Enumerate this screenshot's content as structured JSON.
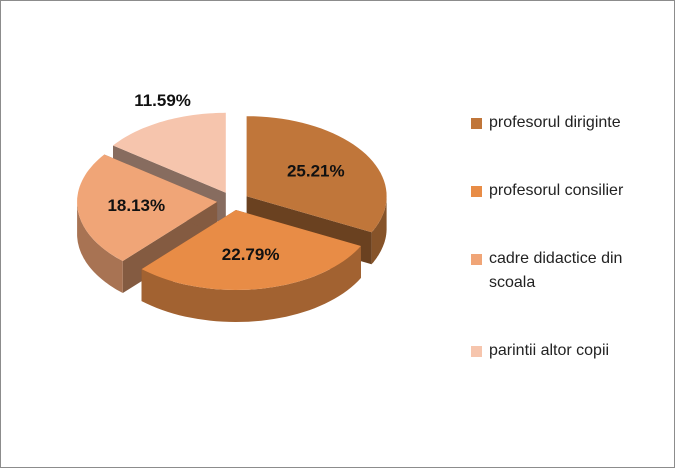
{
  "chart_data": {
    "type": "pie",
    "categories": [
      "profesorul diriginte",
      "profesorul consilier",
      "cadre didactice din scoala",
      "parintii altor copii"
    ],
    "values": [
      25.21,
      22.79,
      18.13,
      11.59
    ],
    "value_labels": [
      "25.21%",
      "22.79%",
      "18.13%",
      "11.59%"
    ],
    "colors": [
      "#c0763a",
      "#e88c46",
      "#f0a577",
      "#f6c5ad"
    ],
    "legend": "right"
  }
}
